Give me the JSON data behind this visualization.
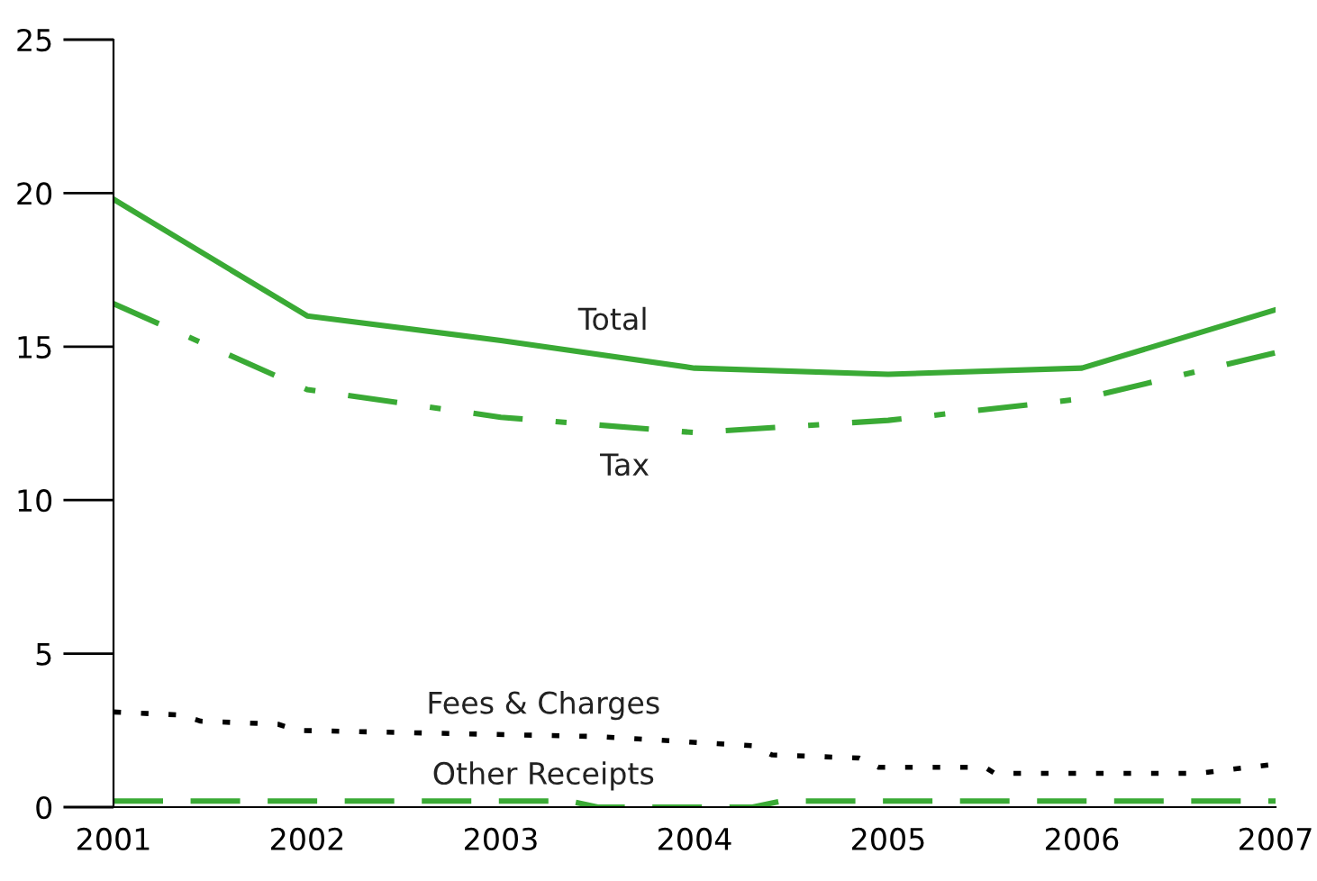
{
  "chart_data": {
    "type": "line",
    "xlim": [
      2001,
      2007
    ],
    "xticks": [
      2001,
      2002,
      2003,
      2004,
      2005,
      2006,
      2007
    ],
    "ylim": [
      0,
      25
    ],
    "yticks": [
      0,
      5,
      10,
      15,
      20,
      25
    ],
    "grid": false,
    "legend": false,
    "marker": "none",
    "series": [
      {
        "name": "Total",
        "color": "#3aaa35",
        "line_style": "solid",
        "x": [
          2001,
          2002,
          2003,
          2004,
          2005,
          2006,
          2007
        ],
        "values": [
          19.8,
          16.0,
          15.2,
          14.3,
          14.1,
          14.3,
          16.2
        ]
      },
      {
        "name": "Tax",
        "color": "#3aaa35",
        "line_style": "dashdot",
        "x": [
          2001,
          2002,
          2003,
          2004,
          2005,
          2006,
          2007
        ],
        "values": [
          16.4,
          13.6,
          12.7,
          12.2,
          12.6,
          13.3,
          14.8
        ]
      },
      {
        "name": "Fees & Charges",
        "color": "#000000",
        "line_style": "dotted",
        "x": [
          2001,
          2001.35,
          2001.45,
          2001.85,
          2001.95,
          2003.5,
          2004.3,
          2004.4,
          2004.85,
          2004.95,
          2005.5,
          2005.55,
          2006.6,
          2007
        ],
        "values": [
          3.1,
          3.0,
          2.8,
          2.7,
          2.5,
          2.3,
          2.0,
          1.7,
          1.6,
          1.3,
          1.3,
          1.1,
          1.1,
          1.4
        ]
      },
      {
        "name": "Other Receipts",
        "color": "#3aaa35",
        "line_style": "dashed",
        "x": [
          2001,
          2003.35,
          2003.5,
          2004.3,
          2004.45,
          2007
        ],
        "values": [
          0.2,
          0.2,
          0.0,
          0.0,
          0.2,
          0.2
        ]
      }
    ]
  }
}
